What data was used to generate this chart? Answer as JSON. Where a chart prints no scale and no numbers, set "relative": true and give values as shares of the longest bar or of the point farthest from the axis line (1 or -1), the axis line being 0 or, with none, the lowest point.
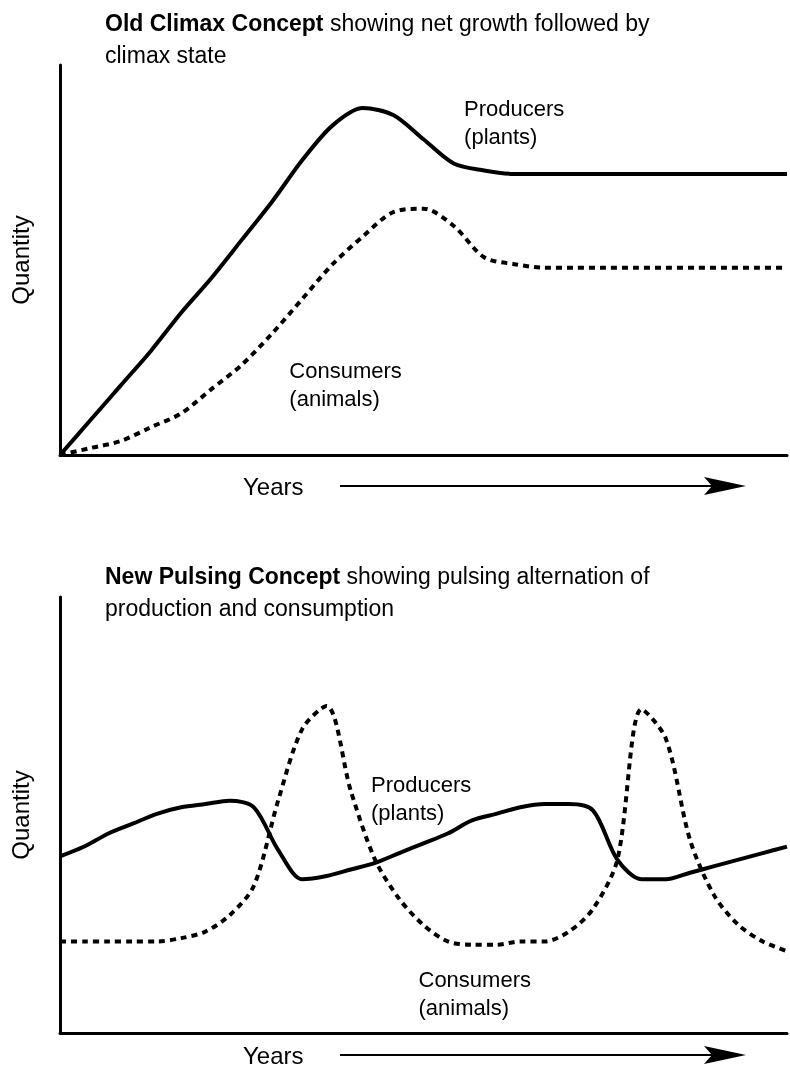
{
  "chart_data": [
    {
      "type": "line",
      "title": "Old Climax Concept",
      "subtitle": "showing net growth followed by climax state",
      "xlabel": "Years",
      "ylabel": "Quantity",
      "relative": true,
      "marker": "none",
      "categories": [
        null,
        null,
        null,
        null,
        null,
        null,
        null,
        null,
        null,
        null,
        null,
        null,
        null,
        null,
        null,
        null,
        null,
        null,
        null,
        null,
        null,
        null,
        null,
        null,
        null
      ],
      "series": [
        {
          "name": "Producers\n(plants)",
          "color": "#000000",
          "line_style": "solid",
          "values": [
            0,
            0.1,
            0.2,
            0.3,
            0.41,
            0.51,
            0.62,
            0.73,
            0.85,
            0.95,
            1,
            0.98,
            0.91,
            0.84,
            0.82,
            0.81,
            0.81,
            0.81,
            0.81,
            0.81,
            0.81,
            0.81,
            0.81,
            0.81,
            0.81
          ]
        },
        {
          "name": "Consumers\n(animals)",
          "color": "#000000",
          "line_style": "dashed",
          "values": [
            0,
            0.02,
            0.04,
            0.08,
            0.12,
            0.19,
            0.26,
            0.35,
            0.45,
            0.55,
            0.63,
            0.7,
            0.71,
            0.66,
            0.57,
            0.55,
            0.54,
            0.54,
            0.54,
            0.54,
            0.54,
            0.54,
            0.54,
            0.54,
            0.54
          ]
        }
      ]
    },
    {
      "type": "line",
      "title": "New Pulsing Concept",
      "subtitle": "showing pulsing alternation of production and consumption",
      "xlabel": "Years",
      "ylabel": "Quantity",
      "relative": true,
      "marker": "none",
      "categories": [
        null,
        null,
        null,
        null,
        null,
        null,
        null,
        null,
        null,
        null,
        null,
        null,
        null,
        null,
        null,
        null,
        null,
        null,
        null,
        null,
        null,
        null,
        null,
        null,
        null,
        null,
        null,
        null,
        null,
        null,
        null
      ],
      "series": [
        {
          "name": "Producers\n(plants)",
          "color": "#000000",
          "line_style": "solid",
          "values": [
            0.54,
            0.57,
            0.61,
            0.64,
            0.67,
            0.69,
            0.7,
            0.71,
            0.69,
            0.56,
            0.47,
            0.48,
            0.5,
            0.52,
            0.55,
            0.58,
            0.61,
            0.65,
            0.67,
            0.69,
            0.7,
            0.7,
            0.68,
            0.53,
            0.47,
            0.47,
            0.49,
            0.51,
            0.53,
            0.55,
            0.57
          ]
        },
        {
          "name": "Consumers\n(animals)",
          "color": "#000000",
          "line_style": "dashed",
          "values": [
            0.28,
            0.28,
            0.28,
            0.28,
            0.28,
            0.29,
            0.31,
            0.36,
            0.45,
            0.71,
            0.93,
            1,
            0.74,
            0.53,
            0.41,
            0.33,
            0.28,
            0.27,
            0.27,
            0.28,
            0.28,
            0.31,
            0.38,
            0.53,
            0.99,
            0.9,
            0.59,
            0.42,
            0.33,
            0.28,
            0.25
          ]
        }
      ]
    }
  ]
}
